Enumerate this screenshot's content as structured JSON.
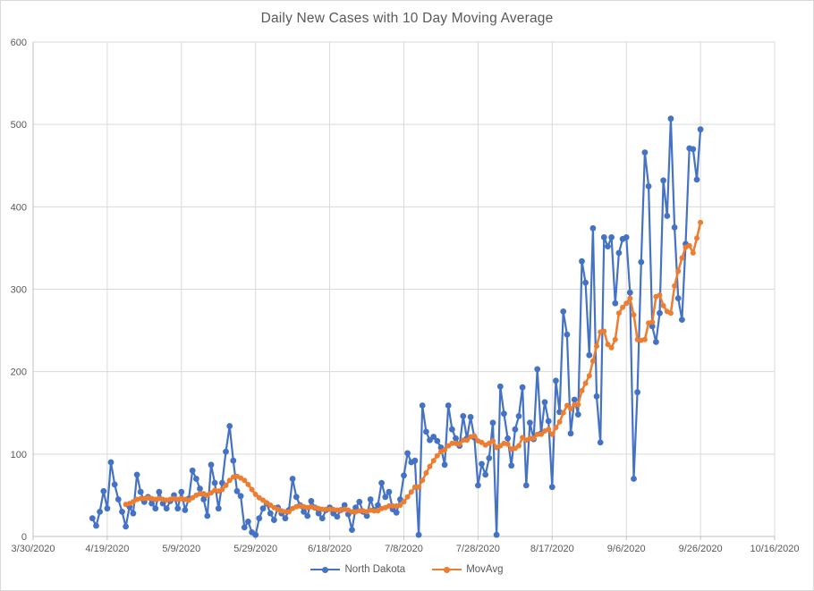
{
  "colors": {
    "series_blue": "#4472C4",
    "series_orange": "#ED7D31",
    "text": "#595959",
    "gridline": "#D9D9D9",
    "axis": "#BFBFBF",
    "background": "#FFFFFF"
  },
  "chart_data": {
    "type": "line",
    "title": "Daily New Cases with 10 Day Moving Average",
    "xlabel": "",
    "ylabel": "",
    "grid": true,
    "legend_position": "bottom",
    "x_axis": {
      "start": "3/30/2020",
      "end": "10/16/2020",
      "tick_interval_days": 20,
      "tick_labels": [
        "3/30/2020",
        "4/19/2020",
        "5/9/2020",
        "5/29/2020",
        "6/18/2020",
        "7/8/2020",
        "7/28/2020",
        "8/17/2020",
        "9/6/2020",
        "9/26/2020",
        "10/16/2020"
      ]
    },
    "y_axis": {
      "min": 0,
      "max": 600,
      "tick_step": 100,
      "tick_labels": [
        "0",
        "100",
        "200",
        "300",
        "400",
        "500",
        "600"
      ]
    },
    "series": [
      {
        "name": "North Dakota",
        "color": "#4472C4",
        "marker": "circle",
        "frequency": "daily",
        "start_date": "4/15/2020",
        "values": [
          22,
          13,
          30,
          55,
          34,
          90,
          63,
          45,
          30,
          12,
          36,
          28,
          75,
          54,
          42,
          48,
          40,
          34,
          54,
          40,
          34,
          43,
          50,
          34,
          54,
          32,
          46,
          80,
          70,
          58,
          45,
          25,
          87,
          65,
          34,
          65,
          103,
          134,
          92,
          55,
          49,
          11,
          18,
          5,
          2,
          22,
          34,
          40,
          28,
          20,
          35,
          28,
          22,
          32,
          70,
          48,
          38,
          30,
          25,
          43,
          35,
          28,
          22,
          32,
          35,
          28,
          24,
          32,
          38,
          27,
          8,
          35,
          42,
          30,
          25,
          45,
          32,
          38,
          65,
          48,
          54,
          33,
          29,
          45,
          74,
          101,
          90,
          92,
          2,
          159,
          127,
          117,
          121,
          116,
          108,
          87,
          159,
          130,
          119,
          110,
          146,
          119,
          145,
          120,
          62,
          88,
          75,
          95,
          138,
          2,
          182,
          149,
          119,
          86,
          130,
          146,
          181,
          62,
          138,
          118,
          203,
          125,
          163,
          140,
          60,
          189,
          151,
          273,
          245,
          125,
          166,
          148,
          334,
          308,
          220,
          374,
          170,
          114,
          363,
          352,
          363,
          283,
          344,
          361,
          363,
          296,
          70,
          175,
          333,
          466,
          425,
          255,
          236,
          271,
          432,
          389,
          507,
          375,
          289,
          263,
          355,
          471,
          470,
          433,
          494
        ]
      },
      {
        "name": "MovAvg",
        "color": "#ED7D31",
        "marker": "circle",
        "frequency": "daily",
        "window_days": 10,
        "start_date": "4/24/2020",
        "values": [
          39,
          40,
          42,
          45,
          46,
          46,
          47,
          46,
          45,
          46,
          45,
          44,
          45,
          46,
          45,
          46,
          45,
          44,
          47,
          50,
          52,
          52,
          50,
          53,
          56,
          55,
          57,
          62,
          68,
          72,
          73,
          71,
          68,
          63,
          57,
          51,
          47,
          44,
          41,
          38,
          35,
          33,
          31,
          30,
          30,
          34,
          36,
          37,
          36,
          35,
          36,
          35,
          34,
          33,
          33,
          33,
          33,
          32,
          32,
          33,
          32,
          30,
          30,
          31,
          31,
          30,
          32,
          31,
          31,
          34,
          35,
          37,
          37,
          37,
          38,
          42,
          48,
          54,
          60,
          60,
          68,
          77,
          85,
          92,
          98,
          103,
          105,
          110,
          113,
          113,
          112,
          117,
          117,
          121,
          122,
          116,
          114,
          111,
          113,
          116,
          108,
          110,
          113,
          112,
          106,
          107,
          110,
          120,
          117,
          119,
          119,
          124,
          124,
          128,
          130,
          124,
          132,
          139,
          150,
          159,
          155,
          160,
          160,
          177,
          186,
          195,
          213,
          231,
          248,
          249,
          233,
          229,
          239,
          271,
          278,
          283,
          289,
          269,
          239,
          238,
          239,
          259,
          260,
          291,
          293,
          280,
          273,
          271,
          304,
          322,
          338,
          351,
          353,
          344,
          362,
          381
        ]
      }
    ]
  }
}
